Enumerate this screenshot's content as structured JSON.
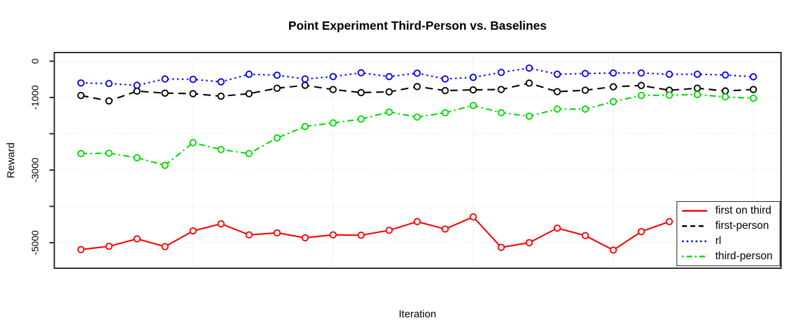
{
  "chart_data": {
    "type": "line",
    "title": "Point Experiment Third-Person vs. Baselines",
    "xlabel": "Iteration",
    "ylabel": "Reward",
    "x": [
      1,
      2,
      3,
      4,
      5,
      6,
      7,
      8,
      9,
      10,
      11,
      12,
      13,
      14,
      15,
      16,
      17,
      18,
      19,
      20,
      21,
      22,
      23,
      24,
      25
    ],
    "series": [
      {
        "name": "first on third",
        "color": "#ff0000",
        "line_style": "solid",
        "marker": "open-circle",
        "values": [
          -5190,
          -5100,
          -4895,
          -5110,
          -4675,
          -4480,
          -4785,
          -4730,
          -4865,
          -4785,
          -4795,
          -4660,
          -4420,
          -4625,
          -4290,
          -5130,
          -5000,
          -4600,
          -4805,
          -5205,
          -4695,
          -4420,
          null,
          null,
          null
        ]
      },
      {
        "name": "first-person",
        "color": "#000000",
        "line_style": "dashed",
        "marker": "open-circle",
        "values": [
          -945,
          -1095,
          -825,
          -880,
          -895,
          -965,
          -895,
          -745,
          -665,
          -780,
          -865,
          -845,
          -700,
          -810,
          -790,
          -780,
          -605,
          -840,
          -800,
          -705,
          -670,
          -800,
          -745,
          -820,
          -780
        ]
      },
      {
        "name": "rl",
        "color": "#0000ff",
        "line_style": "dotted",
        "marker": "open-circle",
        "values": [
          -600,
          -615,
          -665,
          -490,
          -500,
          -570,
          -360,
          -385,
          -490,
          -425,
          -320,
          -425,
          -330,
          -490,
          -445,
          -310,
          -190,
          -360,
          -340,
          -325,
          -325,
          -360,
          -360,
          -380,
          -430
        ]
      },
      {
        "name": "third-person",
        "color": "#00dd00",
        "line_style": "dashdot",
        "marker": "open-circle",
        "values": [
          -2545,
          -2535,
          -2660,
          -2870,
          -2245,
          -2435,
          -2545,
          -2115,
          -1800,
          -1700,
          -1595,
          -1400,
          -1540,
          -1420,
          -1220,
          -1420,
          -1515,
          -1320,
          -1320,
          -1115,
          -945,
          -935,
          -920,
          -985,
          -1020
        ]
      }
    ],
    "yticks": [
      {
        "value": 0,
        "label": "0"
      },
      {
        "value": -1000,
        "label": "-1000"
      },
      {
        "value": -2000,
        "label": ""
      },
      {
        "value": -3000,
        "label": "-3000"
      },
      {
        "value": -4000,
        "label": ""
      },
      {
        "value": -5000,
        "label": "-5000"
      }
    ],
    "ylim": [
      -5705,
      238
    ],
    "xlim": [
      0.04,
      25.96
    ],
    "xgrid_at": [
      5,
      10,
      15,
      20,
      25
    ],
    "grid": true,
    "grid_color": "#d4d4d4",
    "legend": {
      "position": "bottom-right",
      "entries": [
        "first on third",
        "first-person",
        "rl",
        "third-person"
      ]
    }
  }
}
